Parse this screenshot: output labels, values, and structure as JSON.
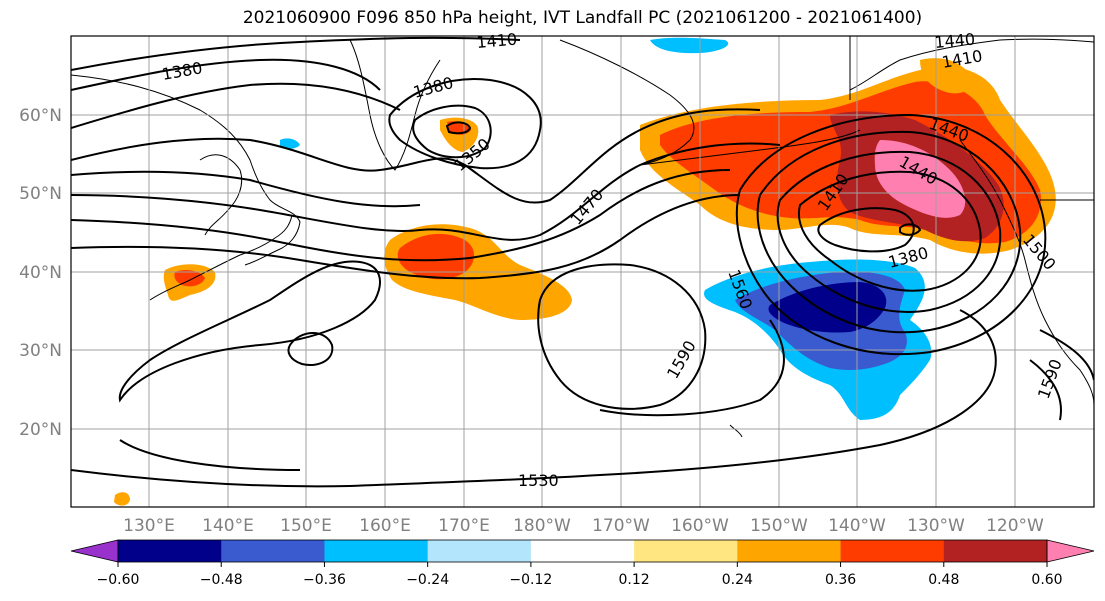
{
  "title": "2021060900 F096 850 hPa height, IVT Landfall PC (2021061200 - 2021061400)",
  "lat_labels": [
    "60°N",
    "50°N",
    "40°N",
    "30°N",
    "20°N"
  ],
  "lon_labels": [
    "130°E",
    "140°E",
    "150°E",
    "160°E",
    "170°E",
    "180°W",
    "170°W",
    "160°W",
    "150°W",
    "140°W",
    "130°W",
    "120°W"
  ],
  "contour_labels": [
    "1380",
    "1410",
    "1380",
    "1350",
    "1470",
    "1410",
    "1440",
    "1440",
    "1410",
    "1440",
    "1380",
    "1560",
    "1590",
    "1530",
    "1500",
    "1590"
  ],
  "colorbar": {
    "ticks": [
      "−0.60",
      "−0.48",
      "−0.36",
      "−0.24",
      "−0.12",
      "0.12",
      "0.24",
      "0.36",
      "0.48",
      "0.60"
    ],
    "colors": [
      "#9932cc",
      "#00008b",
      "#3a5ad0",
      "#00bfff",
      "#b3e5fc",
      "#ffffff",
      "#ffe680",
      "#ffa500",
      "#ff3c00",
      "#b22222",
      "#ff80b0"
    ]
  },
  "colors": {
    "land": "#000000",
    "grid": "#a0a0a0",
    "contour": "#000000",
    "axis_label": "#808080"
  }
}
